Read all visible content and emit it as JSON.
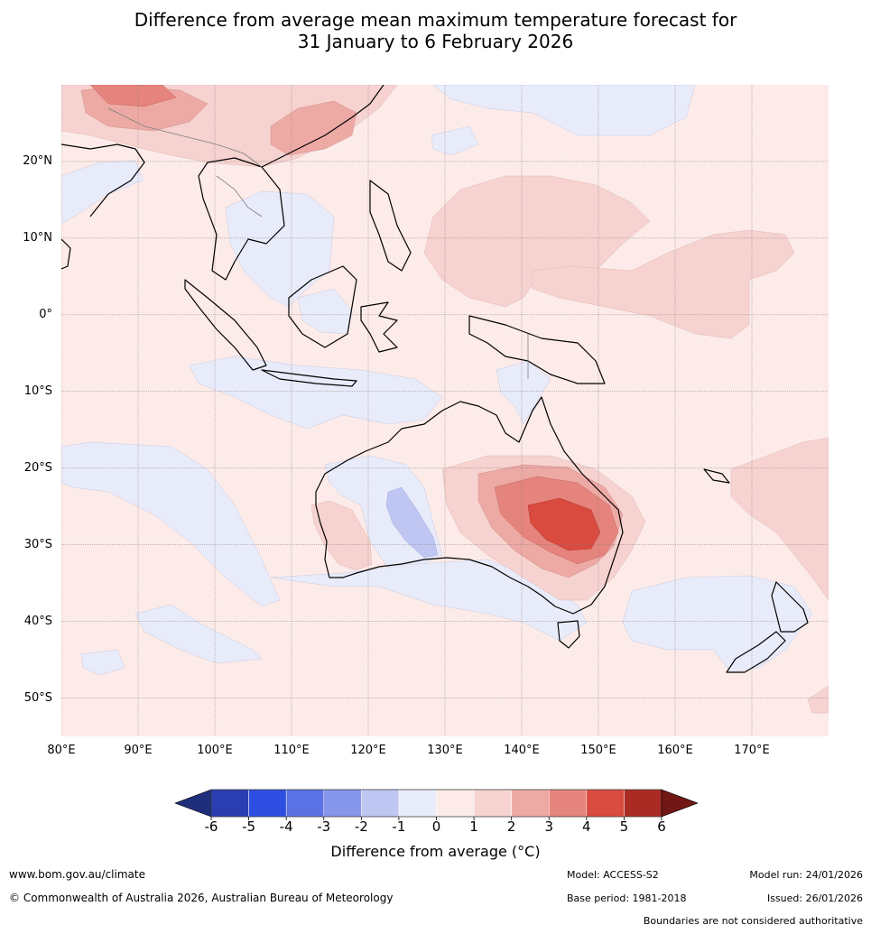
{
  "title": {
    "line1": "Difference from average mean maximum temperature forecast for",
    "line2": "31 January to 6 February 2026"
  },
  "map": {
    "lon_range": [
      80,
      180
    ],
    "lat_range": [
      -55,
      30
    ],
    "lat_labels": [
      "20°N",
      "10°N",
      "0°",
      "10°S",
      "20°S",
      "30°S",
      "40°S",
      "50°S"
    ],
    "lon_labels": [
      "80°E",
      "90°E",
      "100°E",
      "110°E",
      "120°E",
      "130°E",
      "140°E",
      "150°E",
      "160°E",
      "170°E"
    ],
    "anomaly_regions": [
      {
        "name": "eastern-australia-hot-core",
        "value_range": "4 to 5",
        "center_lon": 146,
        "center_lat": -27
      },
      {
        "name": "southern-china-warm",
        "value_range": "2 to 3",
        "center_lon": 114,
        "center_lat": 25
      },
      {
        "name": "great-australian-bight-cool",
        "value_range": "-2 to -1",
        "center_lon": 125,
        "center_lat": -28
      }
    ]
  },
  "colorbar": {
    "ticks": [
      "-6",
      "-5",
      "-4",
      "-3",
      "-2",
      "-1",
      "0",
      "1",
      "2",
      "3",
      "4",
      "5",
      "6"
    ],
    "colors": [
      "#1f2e7a",
      "#2a3eb1",
      "#2d4ee0",
      "#5a72e4",
      "#8696ea",
      "#bfc6f2",
      "#e8ebfa",
      "#fcebe9",
      "#f6d3d0",
      "#edaaa5",
      "#e5847d",
      "#d94a3f",
      "#aa2b24",
      "#721715"
    ],
    "label": "Difference from average (°C)"
  },
  "footer": {
    "website": "www.bom.gov.au/climate",
    "copyright": "© Commonwealth of Australia 2026, Australian Bureau of Meteorology",
    "model": "Model: ACCESS-S2",
    "base_period": "Base period: 1981-2018",
    "model_run": "Model run: 24/01/2026",
    "issued": "Issued: 26/01/2026",
    "boundaries": "Boundaries are not considered authoritative"
  }
}
